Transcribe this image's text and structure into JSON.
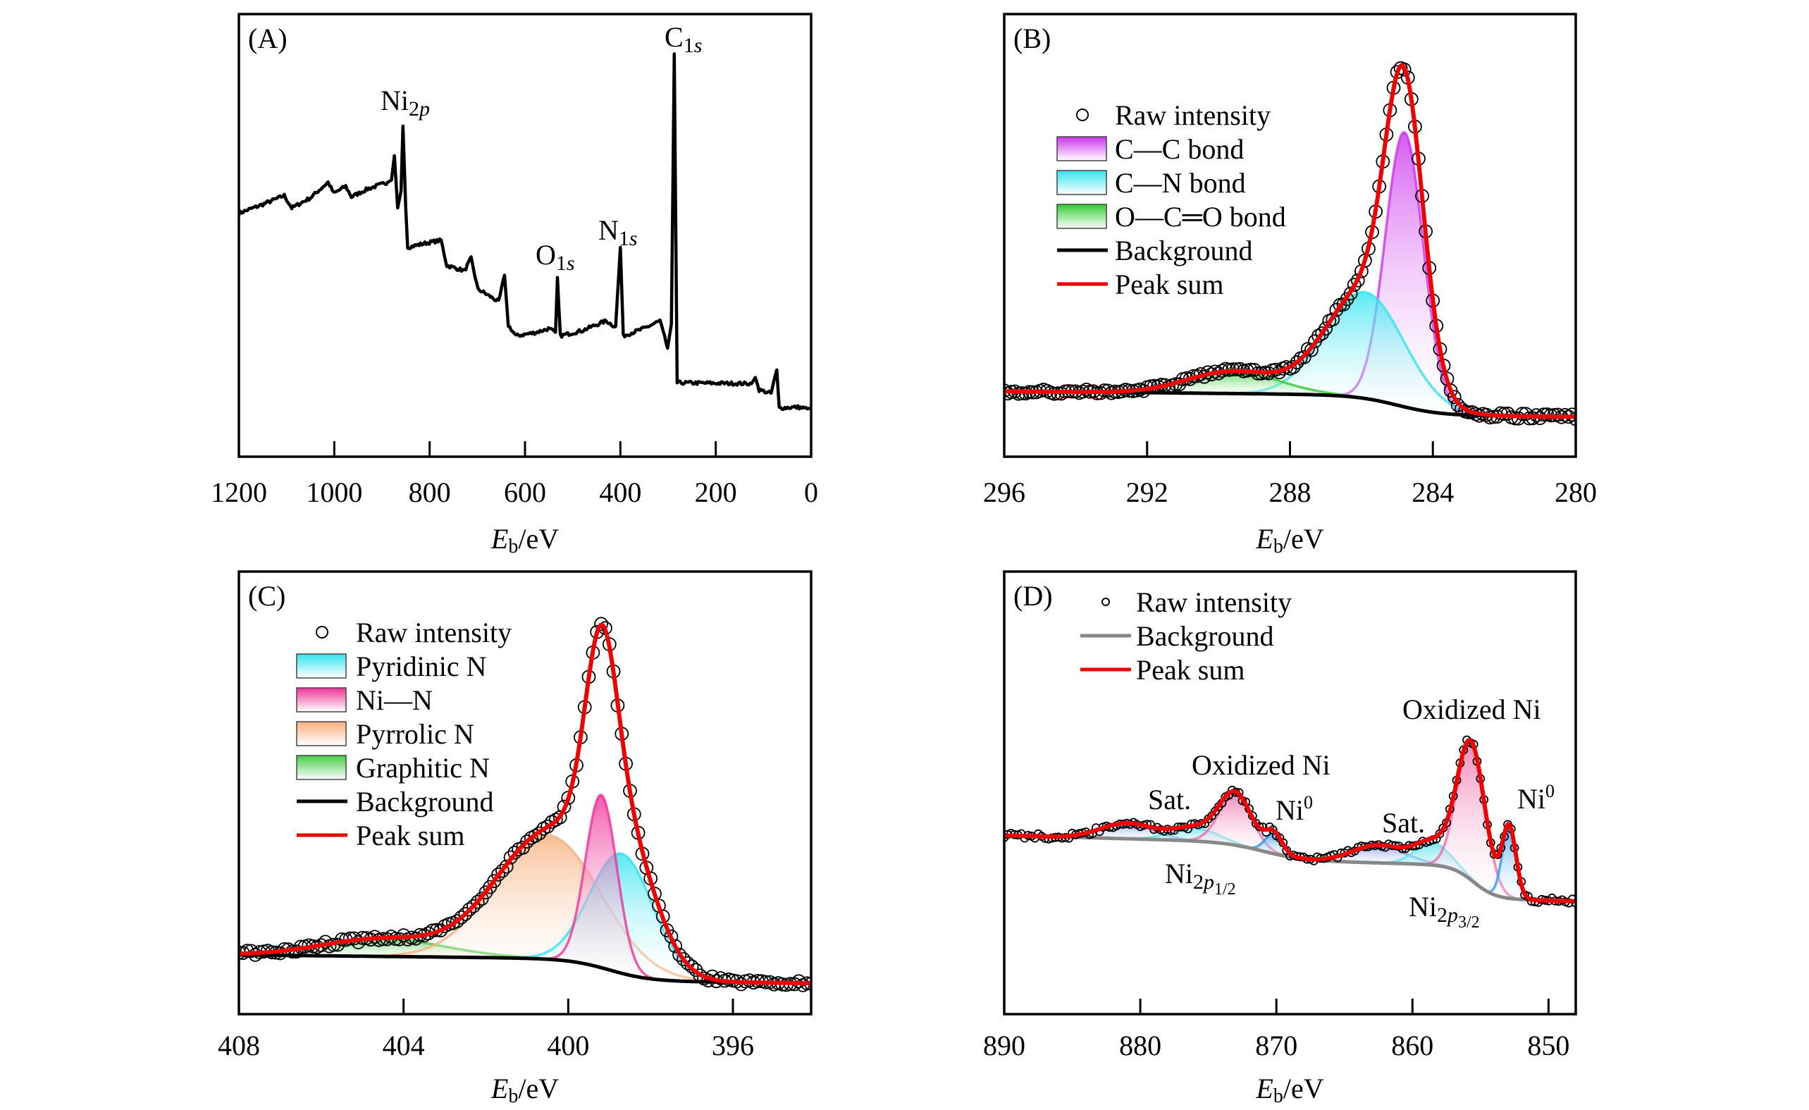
{
  "chart_data": [
    {
      "id": "A",
      "panel_label": "(A)",
      "type": "line",
      "xlabel": {
        "var": "E",
        "sub": "b",
        "unit": "/eV"
      },
      "xlim": [
        1200,
        0
      ],
      "x_ticks": [
        1200,
        1000,
        800,
        600,
        400,
        200,
        0
      ],
      "x_tick_labels": [
        "1200",
        "1000",
        "800",
        "600",
        "400",
        "200",
        "0"
      ],
      "y_units": "relative intensity (no y axis printed)",
      "series": [
        {
          "color": "#000000",
          "points": [
            [
              1200,
              0.55
            ],
            [
              1150,
              0.57
            ],
            [
              1105,
              0.59
            ],
            [
              1089,
              0.562
            ],
            [
              1050,
              0.585
            ],
            [
              1013,
              0.62
            ],
            [
              1001,
              0.595
            ],
            [
              976,
              0.611
            ],
            [
              964,
              0.587
            ],
            [
              930,
              0.605
            ],
            [
              888,
              0.62
            ],
            [
              880,
              0.625
            ],
            [
              874,
              0.68
            ],
            [
              867,
              0.562
            ],
            [
              860,
              0.6
            ],
            [
              856,
              0.747
            ],
            [
              850,
              0.56
            ],
            [
              846,
              0.473
            ],
            [
              810,
              0.482
            ],
            [
              776,
              0.489
            ],
            [
              764,
              0.432
            ],
            [
              727,
              0.42
            ],
            [
              713,
              0.448
            ],
            [
              699,
              0.379
            ],
            [
              655,
              0.35
            ],
            [
              643,
              0.41
            ],
            [
              635,
              0.297
            ],
            [
              619,
              0.273
            ],
            [
              580,
              0.28
            ],
            [
              551,
              0.289
            ],
            [
              536,
              0.281
            ],
            [
              532,
              0.405
            ],
            [
              526,
              0.273
            ],
            [
              480,
              0.285
            ],
            [
              430,
              0.307
            ],
            [
              410,
              0.293
            ],
            [
              400,
              0.473
            ],
            [
              394,
              0.273
            ],
            [
              350,
              0.29
            ],
            [
              317,
              0.307
            ],
            [
              301,
              0.245
            ],
            [
              293,
              0.3
            ],
            [
              287,
              0.91
            ],
            [
              281,
              0.167
            ],
            [
              200,
              0.166
            ],
            [
              125,
              0.165
            ],
            [
              117,
              0.179
            ],
            [
              109,
              0.151
            ],
            [
              84,
              0.143
            ],
            [
              72,
              0.196
            ],
            [
              67,
              0.11
            ],
            [
              28,
              0.112
            ],
            [
              8,
              0.108
            ],
            [
              0,
              0.11
            ]
          ]
        }
      ],
      "annotations": [
        {
          "main": "Ni",
          "sub": "2p",
          "x": 856
        },
        {
          "main": "O",
          "sub": "1s",
          "x": 532
        },
        {
          "main": "N",
          "sub": "1s",
          "x": 400
        },
        {
          "main": "C",
          "sub": "1s",
          "x": 287
        }
      ]
    },
    {
      "id": "B",
      "panel_label": "(B)",
      "type": "area",
      "xlabel": {
        "var": "E",
        "sub": "b",
        "unit": "/eV"
      },
      "xlim": [
        296,
        280
      ],
      "x_ticks": [
        296,
        292,
        288,
        284,
        280
      ],
      "x_tick_labels": [
        "296",
        "292",
        "288",
        "284",
        "280"
      ],
      "background": {
        "base": 0.09,
        "slope": 0.0008,
        "steps": [
          {
            "center": 285.0,
            "height": 0.045,
            "width": 0.6
          }
        ]
      },
      "components": [
        {
          "name": "C—C bond",
          "center": 284.8,
          "amplitude": 0.62,
          "fwhm": 1.25,
          "color": "#cc33ee"
        },
        {
          "name": "C—N bond",
          "center": 285.9,
          "amplitude": 0.24,
          "fwhm": 2.6,
          "color": "#33e4f0"
        },
        {
          "name": "O—C═O bond",
          "center": 289.6,
          "amplitude": 0.05,
          "fwhm": 3.0,
          "color": "#33cc33"
        }
      ],
      "raw_step": 0.1,
      "marker_size": "large",
      "background_color": "#000000",
      "sum_color": "#ee0000",
      "legend": [
        {
          "type": "marker",
          "label": "Raw intensity"
        },
        {
          "type": "fill",
          "label": "C—C bond",
          "color": "#cc33ee"
        },
        {
          "type": "fill",
          "label": "C—N bond",
          "color": "#33e4f0"
        },
        {
          "type": "fill",
          "label": "O—C═O bond",
          "color": "#33cc33"
        },
        {
          "type": "line",
          "label": "Background",
          "color": "#000000"
        },
        {
          "type": "line",
          "label": "Peak sum",
          "color": "#ee0000"
        }
      ],
      "legend_position": "top-left",
      "annotations": []
    },
    {
      "id": "C",
      "panel_label": "(C)",
      "type": "area",
      "xlabel": {
        "var": "E",
        "sub": "b",
        "unit": "/eV"
      },
      "xlim": [
        408,
        394.1
      ],
      "x_ticks": [
        408,
        404,
        400,
        396
      ],
      "x_tick_labels": [
        "408",
        "404",
        "400",
        "396"
      ],
      "background": {
        "base": 0.07,
        "slope": 0.001,
        "steps": [
          {
            "center": 399.0,
            "height": 0.05,
            "width": 0.5
          }
        ]
      },
      "components": [
        {
          "name": "Graphitic N",
          "center": 404.5,
          "amplitude": 0.04,
          "fwhm": 3.5,
          "color": "#44cc44"
        },
        {
          "name": "Pyrrolic N",
          "center": 400.5,
          "amplitude": 0.28,
          "fwhm": 3.0,
          "color": "#f7b07c"
        },
        {
          "name": "Pyridinic N",
          "center": 398.7,
          "amplitude": 0.27,
          "fwhm": 1.8,
          "color": "#33e4f0"
        },
        {
          "name": "Ni—N",
          "center": 399.2,
          "amplitude": 0.39,
          "fwhm": 0.9,
          "color": "#ee3399"
        }
      ],
      "raw_step": 0.1,
      "marker_size": "large",
      "background_color": "#000000",
      "sum_color": "#ee0000",
      "legend": [
        {
          "type": "marker",
          "label": "Raw intensity"
        },
        {
          "type": "fill",
          "label": "Pyridinic N",
          "color": "#33e4f0"
        },
        {
          "type": "fill",
          "label": "Ni—N",
          "color": "#ee3399"
        },
        {
          "type": "fill",
          "label": "Pyrrolic N",
          "color": "#f7b07c"
        },
        {
          "type": "fill",
          "label": "Graphitic N",
          "color": "#44cc44"
        },
        {
          "type": "line",
          "label": "Background",
          "color": "#000000"
        },
        {
          "type": "line",
          "label": "Peak sum",
          "color": "#ee0000"
        }
      ],
      "legend_position": "top-left",
      "annotations": []
    },
    {
      "id": "D",
      "panel_label": "(D)",
      "type": "area",
      "xlabel": {
        "var": "E",
        "sub": "b",
        "unit": "/eV"
      },
      "xlim": [
        890,
        848
      ],
      "x_ticks": [
        890,
        880,
        870,
        860,
        850
      ],
      "x_tick_labels": [
        "890",
        "880",
        "870",
        "860",
        "850"
      ],
      "background": {
        "base": 0.255,
        "slope": 0.0008,
        "steps": [
          {
            "center": 855.5,
            "height": 0.075,
            "width": 0.8
          },
          {
            "center": 871.0,
            "height": 0.04,
            "width": 1.5
          }
        ]
      },
      "components": [
        {
          "name": "Sat. 2p1/2",
          "center": 881.0,
          "amplitude": 0.035,
          "fwhm": 4.5,
          "color": "#8090ee"
        },
        {
          "name": "Sat. 2p1/2 (2)",
          "center": 876.0,
          "amplitude": 0.03,
          "fwhm": 4.0,
          "color": "#66e4f0"
        },
        {
          "name": "Oxidized Ni 2p1/2",
          "center": 873.0,
          "amplitude": 0.115,
          "fwhm": 2.8,
          "color": "#f06aa8"
        },
        {
          "name": "Ni0 2p1/2",
          "center": 870.2,
          "amplitude": 0.045,
          "fwhm": 1.5,
          "color": "#3399ee"
        },
        {
          "name": "Sat. 2p3/2",
          "center": 862.5,
          "amplitude": 0.04,
          "fwhm": 4.5,
          "color": "#8090ee"
        },
        {
          "name": "Sat. 2p3/2 (2)",
          "center": 858.5,
          "amplitude": 0.05,
          "fwhm": 3.0,
          "color": "#66e4f0"
        },
        {
          "name": "Oxidized Ni 2p3/2",
          "center": 855.7,
          "amplitude": 0.31,
          "fwhm": 2.4,
          "color": "#f06aa8"
        },
        {
          "name": "Ni0 2p3/2",
          "center": 852.9,
          "amplitude": 0.16,
          "fwhm": 1.2,
          "color": "#3399ee"
        }
      ],
      "raw_step": 0.25,
      "marker_size": "small",
      "background_color": "#888888",
      "sum_color": "#ee0000",
      "legend": [
        {
          "type": "marker",
          "label": "Raw intensity"
        },
        {
          "type": "line",
          "label": "Background",
          "color": "#888888"
        },
        {
          "type": "line",
          "label": "Peak sum",
          "color": "#ee0000"
        }
      ],
      "legend_position": "top-left",
      "annotations": [
        {
          "main": "Sat.",
          "x": 881
        },
        {
          "main": "Oxidized Ni",
          "x": 873
        },
        {
          "main": "Ni",
          "sup": "0",
          "x": 870.2
        },
        {
          "main": "Ni",
          "sub": "2p",
          "subsub": "1/2",
          "x": 875
        },
        {
          "main": "Sat.",
          "x": 862.5
        },
        {
          "main": "Oxidized Ni",
          "x": 855.7
        },
        {
          "main": "Ni",
          "sup": "0",
          "x": 852.9
        },
        {
          "main": "Ni",
          "sub": "2p",
          "subsub": "3/2",
          "x": 858
        }
      ]
    }
  ]
}
